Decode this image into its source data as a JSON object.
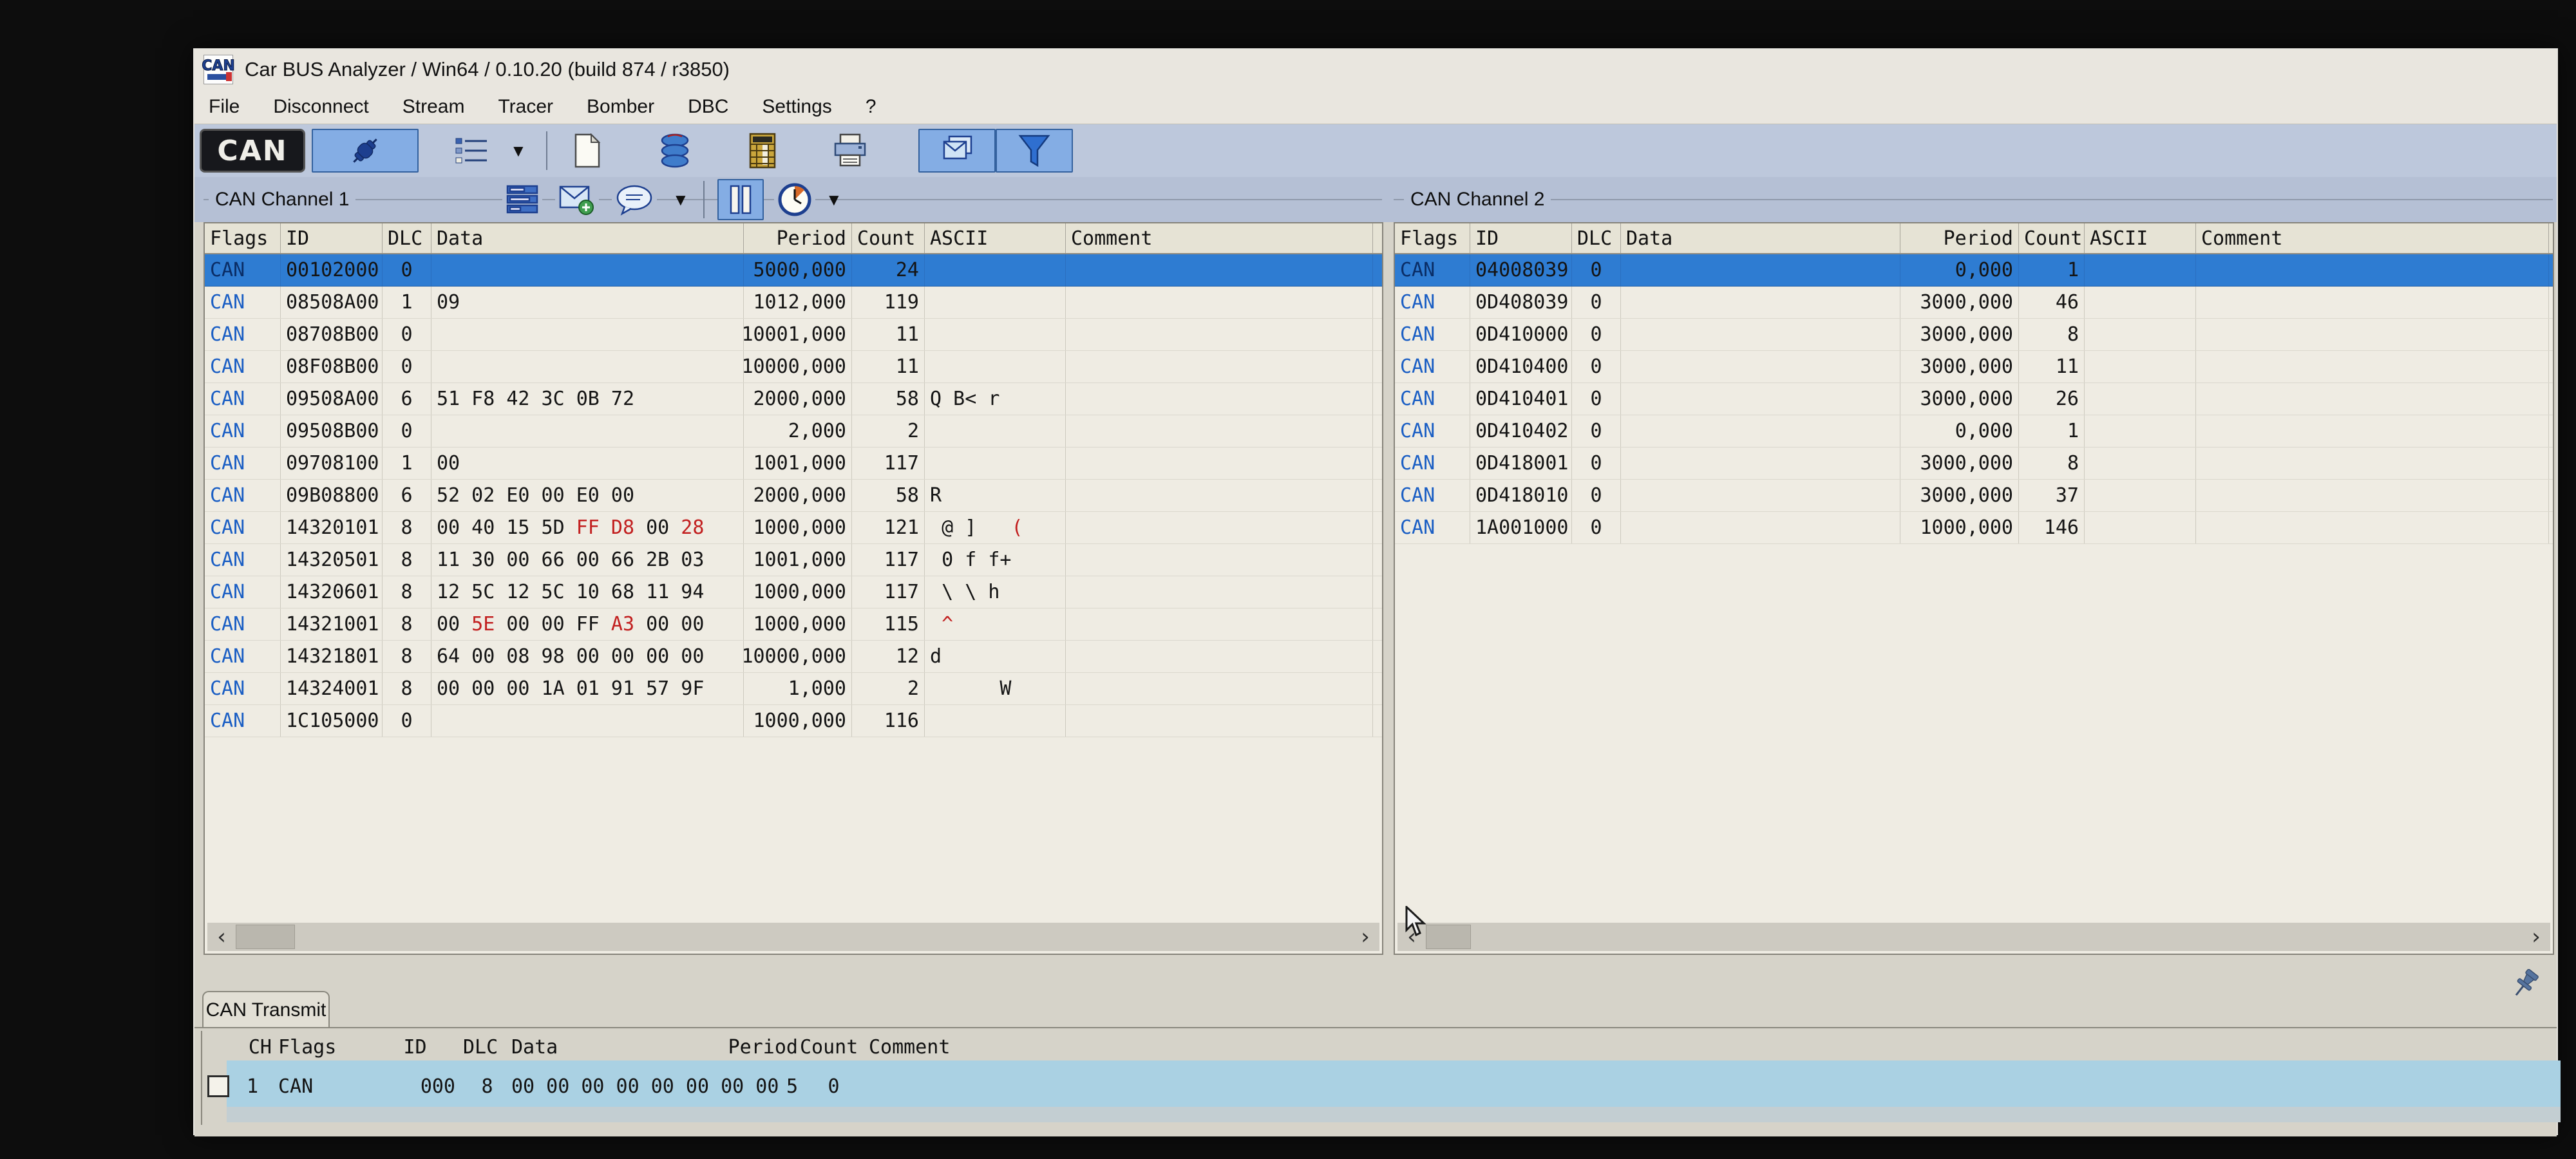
{
  "window": {
    "title": "Car BUS Analyzer / Win64 / 0.10.20 (build 874 / r3850)",
    "logo_text": "CAN"
  },
  "menu": {
    "items": [
      "File",
      "Disconnect",
      "Stream",
      "Tracer",
      "Bomber",
      "DBC",
      "Settings",
      "?"
    ]
  },
  "toolbar": {
    "buttons": [
      "connect",
      "message-list",
      "new-file",
      "database",
      "calculator",
      "print",
      "copy-messages",
      "filter"
    ],
    "pressed": [
      "connect",
      "copy-messages",
      "filter"
    ]
  },
  "icons": {
    "dropdown": "▼",
    "scroll_left": "‹",
    "scroll_right": "›"
  },
  "colors": {
    "selected_row": "#2e7cd2",
    "flag_blue": "#1a5ec4",
    "changed_red": "#c22020",
    "toolbar_strip": "#bdc8dc",
    "pressed_button": "#84ade4",
    "transmit_band": "#aad1e3"
  },
  "channel1": {
    "label": "CAN Channel 1",
    "columns": [
      "Flags",
      "ID",
      "DLC",
      "Data",
      "Period",
      "Count",
      "ASCII",
      "Comment"
    ],
    "rows": [
      {
        "flags": "CAN",
        "id": "00102000",
        "dlc": "0",
        "data": "",
        "period": "5000,000",
        "count": "24",
        "ascii": "",
        "comment": "",
        "selected": true
      },
      {
        "flags": "CAN",
        "id": "08508A00",
        "dlc": "1",
        "data": "09",
        "period": "1012,000",
        "count": "119",
        "ascii": "",
        "comment": ""
      },
      {
        "flags": "CAN",
        "id": "08708B00",
        "dlc": "0",
        "data": "",
        "period": "10001,000",
        "count": "11",
        "ascii": "",
        "comment": ""
      },
      {
        "flags": "CAN",
        "id": "08F08B00",
        "dlc": "0",
        "data": "",
        "period": "10000,000",
        "count": "11",
        "ascii": "",
        "comment": ""
      },
      {
        "flags": "CAN",
        "id": "09508A00",
        "dlc": "6",
        "data": "51 F8 42 3C 0B 72",
        "period": "2000,000",
        "count": "58",
        "ascii": "Q B< r",
        "comment": ""
      },
      {
        "flags": "CAN",
        "id": "09508B00",
        "dlc": "0",
        "data": "",
        "period": "2,000",
        "count": "2",
        "ascii": "",
        "comment": ""
      },
      {
        "flags": "CAN",
        "id": "09708100",
        "dlc": "1",
        "data": "00",
        "period": "1001,000",
        "count": "117",
        "ascii": "",
        "comment": ""
      },
      {
        "flags": "CAN",
        "id": "09B08800",
        "dlc": "6",
        "data": "52 02 E0 00 E0 00",
        "period": "2000,000",
        "count": "58",
        "ascii": "R",
        "comment": ""
      },
      {
        "flags": "CAN",
        "id": "14320101",
        "dlc": "8",
        "data": "00 40 15 5D FF D8 00 28",
        "red_bytes": [
          4,
          5,
          7
        ],
        "period": "1000,000",
        "count": "121",
        "ascii": " @ ]   (",
        "ascii_red": [
          7
        ],
        "comment": ""
      },
      {
        "flags": "CAN",
        "id": "14320501",
        "dlc": "8",
        "data": "11 30 00 66 00 66 2B 03",
        "period": "1001,000",
        "count": "117",
        "ascii": " 0 f f+",
        "comment": ""
      },
      {
        "flags": "CAN",
        "id": "14320601",
        "dlc": "8",
        "data": "12 5C 12 5C 10 68 11 94",
        "period": "1000,000",
        "count": "117",
        "ascii": " \\ \\ h",
        "comment": ""
      },
      {
        "flags": "CAN",
        "id": "14321001",
        "dlc": "8",
        "data": "00 5E 00 00 FF A3 00 00",
        "red_bytes": [
          1,
          5
        ],
        "period": "1000,000",
        "count": "115",
        "ascii": " ^",
        "ascii_red": [
          1
        ],
        "comment": ""
      },
      {
        "flags": "CAN",
        "id": "14321801",
        "dlc": "8",
        "data": "64 00 08 98 00 00 00 00",
        "period": "10000,000",
        "count": "12",
        "ascii": "d",
        "comment": ""
      },
      {
        "flags": "CAN",
        "id": "14324001",
        "dlc": "8",
        "data": "00 00 00 1A 01 91 57 9F",
        "period": "1,000",
        "count": "2",
        "ascii": "      W",
        "comment": ""
      },
      {
        "flags": "CAN",
        "id": "1C105000",
        "dlc": "0",
        "data": "",
        "period": "1000,000",
        "count": "116",
        "ascii": "",
        "comment": ""
      }
    ]
  },
  "channel2": {
    "label": "CAN Channel 2",
    "columns": [
      "Flags",
      "ID",
      "DLC",
      "Data",
      "Period",
      "Count",
      "ASCII",
      "Comment"
    ],
    "rows": [
      {
        "flags": "CAN",
        "id": "04008039",
        "dlc": "0",
        "data": "",
        "period": "0,000",
        "count": "1",
        "ascii": "",
        "comment": "",
        "selected": true
      },
      {
        "flags": "CAN",
        "id": "0D408039",
        "dlc": "0",
        "data": "",
        "period": "3000,000",
        "count": "46",
        "ascii": "",
        "comment": ""
      },
      {
        "flags": "CAN",
        "id": "0D410000",
        "dlc": "0",
        "data": "",
        "period": "3000,000",
        "count": "8",
        "ascii": "",
        "comment": ""
      },
      {
        "flags": "CAN",
        "id": "0D410400",
        "dlc": "0",
        "data": "",
        "period": "3000,000",
        "count": "11",
        "ascii": "",
        "comment": ""
      },
      {
        "flags": "CAN",
        "id": "0D410401",
        "dlc": "0",
        "data": "",
        "period": "3000,000",
        "count": "26",
        "ascii": "",
        "comment": ""
      },
      {
        "flags": "CAN",
        "id": "0D410402",
        "dlc": "0",
        "data": "",
        "period": "0,000",
        "count": "1",
        "ascii": "",
        "comment": ""
      },
      {
        "flags": "CAN",
        "id": "0D418001",
        "dlc": "0",
        "data": "",
        "period": "3000,000",
        "count": "8",
        "ascii": "",
        "comment": ""
      },
      {
        "flags": "CAN",
        "id": "0D418010",
        "dlc": "0",
        "data": "",
        "period": "3000,000",
        "count": "37",
        "ascii": "",
        "comment": ""
      },
      {
        "flags": "CAN",
        "id": "1A001000",
        "dlc": "0",
        "data": "",
        "period": "1000,000",
        "count": "146",
        "ascii": "",
        "comment": ""
      }
    ]
  },
  "transmit": {
    "tab_label": "CAN Transmit",
    "columns": [
      "CH",
      "Flags",
      "ID",
      "DLC",
      "Data",
      "Period",
      "Count",
      "Comment"
    ],
    "rows": [
      {
        "checked": false,
        "ch": "1",
        "flags": "CAN",
        "id": "000",
        "dlc": "8",
        "data": "00 00 00 00 00 00 00 00",
        "period": "5",
        "count": "0",
        "comment": ""
      }
    ]
  }
}
